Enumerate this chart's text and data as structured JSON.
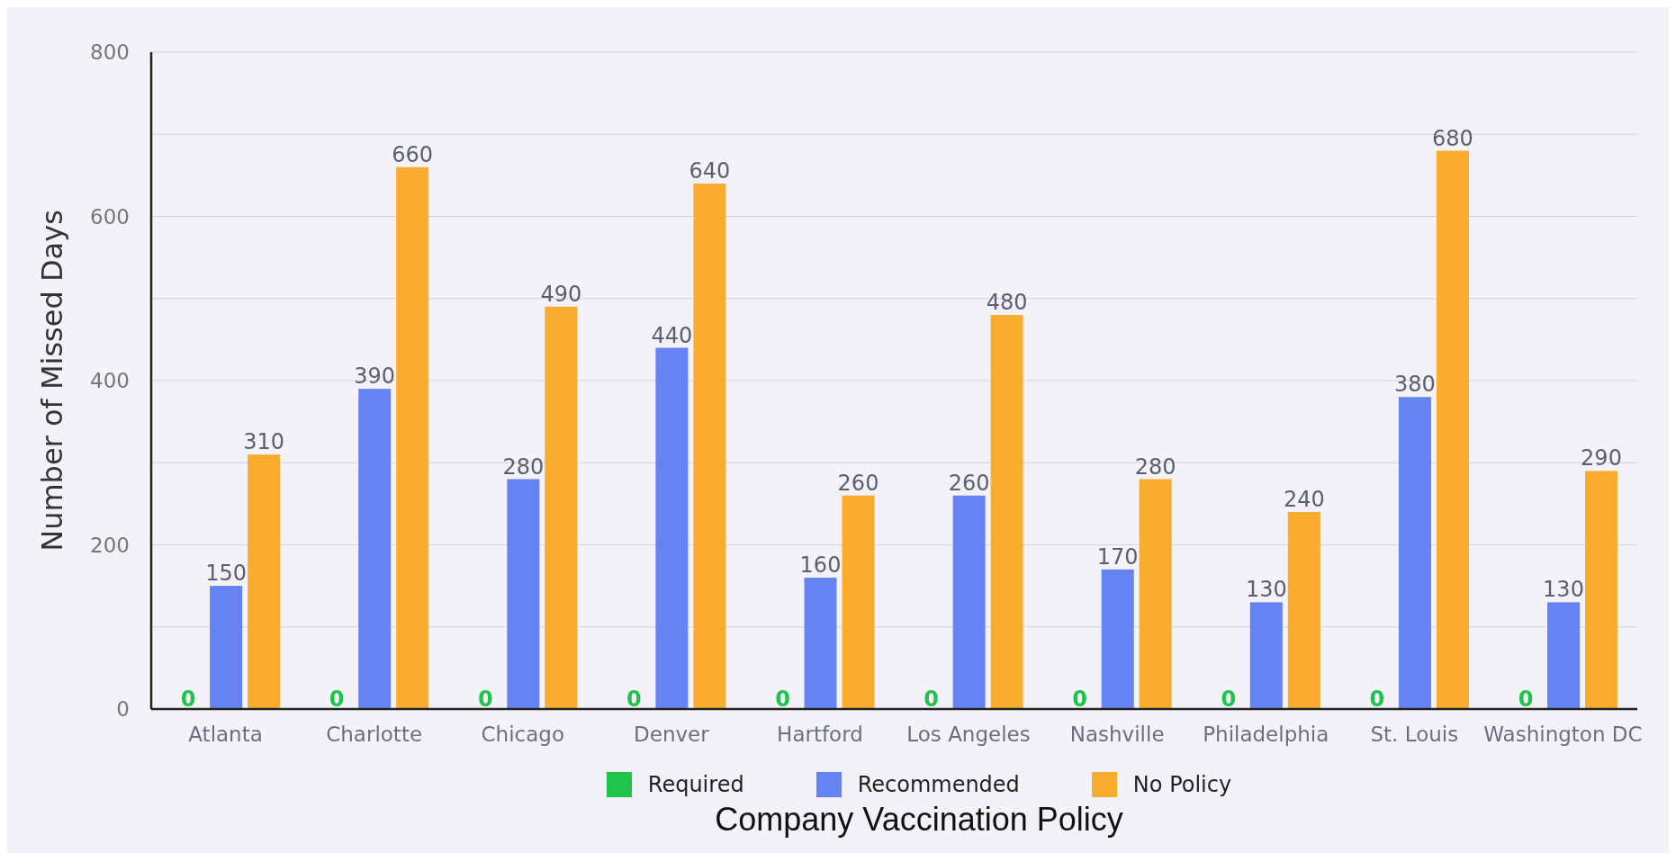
{
  "chart_data": {
    "type": "bar",
    "xlabel": "Company Vaccination Policy",
    "ylabel": "Number of Missed Days",
    "categories": [
      "Atlanta",
      "Charlotte",
      "Chicago",
      "Denver",
      "Hartford",
      "Los Angeles",
      "Nashville",
      "Philadelphia",
      "St. Louis",
      "Washington DC"
    ],
    "series": [
      {
        "name": "Required",
        "color": "#1fc44c",
        "values": [
          0,
          0,
          0,
          0,
          0,
          0,
          0,
          0,
          0,
          0
        ]
      },
      {
        "name": "Recommended",
        "color": "#6583f2",
        "values": [
          150,
          390,
          280,
          440,
          160,
          260,
          170,
          130,
          380,
          130
        ]
      },
      {
        "name": "No Policy",
        "color": "#f9ac2d",
        "values": [
          310,
          660,
          490,
          640,
          260,
          480,
          280,
          240,
          680,
          290
        ]
      }
    ],
    "ylim": [
      0,
      800
    ],
    "yticks": [
      0,
      {
        "value": 100,
        "label": null
      },
      200,
      {
        "value": 300,
        "label": null
      },
      400,
      {
        "value": 500,
        "label": null
      },
      600,
      {
        "value": 700,
        "label": null
      },
      800
    ],
    "grid": "y",
    "legend": "bottom",
    "data_labels": true
  }
}
